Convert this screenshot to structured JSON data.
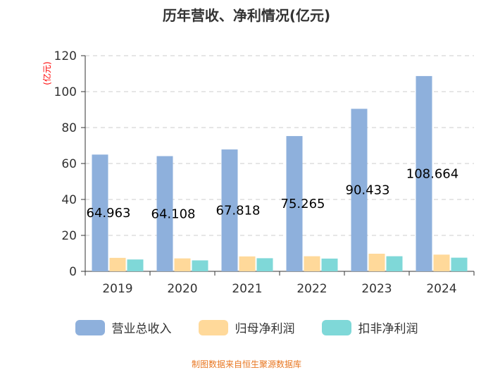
{
  "chart_data": {
    "type": "bar",
    "title": "历年营收、净利情况(亿元)",
    "ylabel": "(亿元)",
    "xlabel": "",
    "categories": [
      "2019",
      "2020",
      "2021",
      "2022",
      "2023",
      "2024"
    ],
    "ylim": [
      0,
      120
    ],
    "yticks": [
      0,
      20,
      40,
      60,
      80,
      100,
      120
    ],
    "grid": true,
    "legend_position": "bottom",
    "series": [
      {
        "name": "营业总收入",
        "color": "#8eb0dc",
        "values": [
          64.963,
          64.108,
          67.818,
          75.265,
          90.433,
          108.664
        ],
        "labels": [
          "64.963",
          "64.108",
          "67.818",
          "75.265",
          "90.433",
          "108.664"
        ]
      },
      {
        "name": "归母净利润",
        "color": "#ffd99a",
        "values": [
          7.5,
          7.2,
          8.3,
          8.4,
          9.8,
          9.3
        ]
      },
      {
        "name": "扣非净利润",
        "color": "#7fd8d8",
        "values": [
          6.6,
          6.1,
          7.3,
          7.1,
          8.4,
          7.6
        ]
      }
    ]
  },
  "source": "制图数据来自恒生聚源数据库"
}
